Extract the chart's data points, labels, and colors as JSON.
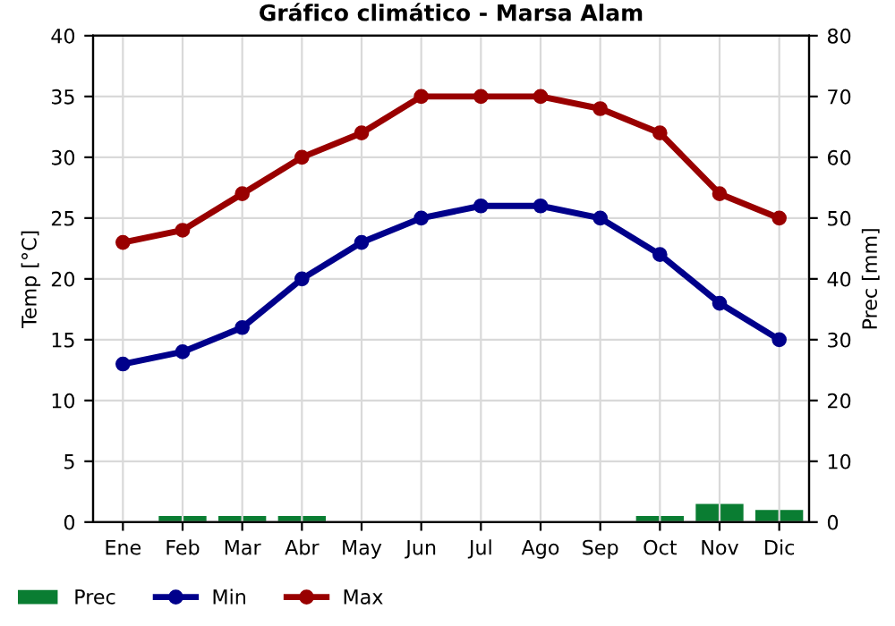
{
  "chart_data": {
    "type": "line",
    "title": "Gráfico climático - Marsa Alam",
    "ylabel": "Temp [°C]",
    "y2label": "Prec [mm]",
    "categories": [
      "Ene",
      "Feb",
      "Mar",
      "Abr",
      "May",
      "Jun",
      "Jul",
      "Ago",
      "Sep",
      "Oct",
      "Nov",
      "Dic"
    ],
    "series": [
      {
        "name": "Prec",
        "type": "bar",
        "axis": "y2",
        "color": "#0a7d32",
        "values": [
          0,
          1,
          1,
          1,
          0,
          0,
          0,
          0,
          0,
          1,
          3,
          2
        ]
      },
      {
        "name": "Min",
        "color": "#00008b",
        "values": [
          13,
          14,
          16,
          20,
          23,
          25,
          26,
          26,
          25,
          22,
          18,
          15
        ]
      },
      {
        "name": "Max",
        "color": "#990000",
        "values": [
          23,
          24,
          27,
          30,
          32,
          35,
          35,
          35,
          34,
          32,
          27,
          25
        ]
      }
    ],
    "ylim": [
      0,
      40
    ],
    "yticks": [
      0,
      5,
      10,
      15,
      20,
      25,
      30,
      35,
      40
    ],
    "y2lim": [
      0,
      80
    ],
    "y2ticks": [
      0,
      10,
      20,
      30,
      40,
      50,
      60,
      70,
      80
    ],
    "grid": true,
    "legend": "bottom",
    "marker": "circle",
    "line_style": "solid"
  }
}
